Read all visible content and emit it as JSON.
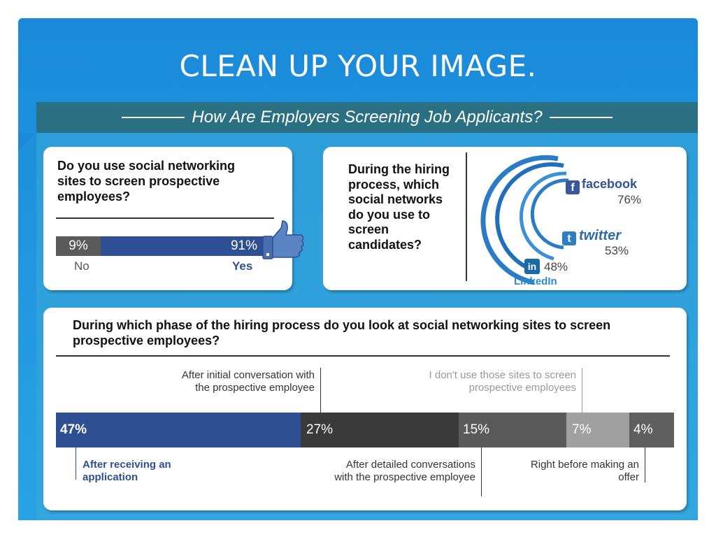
{
  "slide": {
    "title": "CLEAN UP YOUR IMAGE."
  },
  "infographic": {
    "subtitle": "How Are Employers Screening Job Applicants?",
    "q1": {
      "question": "Do you use social networking sites to screen prospective employees?",
      "no_pct": "9%",
      "yes_pct": "91%",
      "no_label": "No",
      "yes_label": "Yes",
      "icon": "thumbs-up-icon"
    },
    "q2": {
      "question": "During the hiring process, which social networks do you use to screen candidates?",
      "facebook": {
        "name": "facebook",
        "pct": "76%"
      },
      "twitter": {
        "name": "twitter",
        "pct": "53%"
      },
      "linkedin": {
        "name": "LinkedIn",
        "pct": "48%"
      }
    },
    "q3": {
      "question": "During which phase of the hiring process do you look at social networking sites to screen prospective employees?",
      "segments": [
        {
          "pct": "47%",
          "color": "#2e4f94"
        },
        {
          "pct": "27%",
          "color": "#3a3a3a"
        },
        {
          "pct": "15%",
          "color": "#5a5a5a"
        },
        {
          "pct": "7%",
          "color": "#a0a0a0"
        },
        {
          "pct": "4%",
          "color": "#5f5f5f"
        }
      ],
      "labels": {
        "after_receiving": "After receiving an application",
        "after_initial": "After initial conversation with the prospective employee",
        "after_detailed": "After detailed conversations with the prospective employee",
        "dont_use": "I don't use those sites to screen prospective employees",
        "right_before": "Right before making an offer"
      }
    }
  },
  "chart_data": [
    {
      "type": "bar",
      "title": "Do you use social networking sites to screen prospective employees?",
      "categories": [
        "No",
        "Yes"
      ],
      "values": [
        9,
        91
      ],
      "ylabel": "%"
    },
    {
      "type": "bar",
      "title": "During the hiring process, which social networks do you use to screen candidates?",
      "categories": [
        "facebook",
        "twitter",
        "LinkedIn"
      ],
      "values": [
        76,
        53,
        48
      ],
      "ylabel": "%"
    },
    {
      "type": "bar",
      "title": "During which phase of the hiring process do you look at social networking sites to screen prospective employees?",
      "categories": [
        "After receiving an application",
        "After initial conversation with the prospective employee",
        "After detailed conversations with the prospective employee",
        "I don't use those sites to screen prospective employees",
        "Right before making an offer"
      ],
      "values": [
        47,
        27,
        15,
        7,
        4
      ],
      "ylabel": "%"
    }
  ]
}
